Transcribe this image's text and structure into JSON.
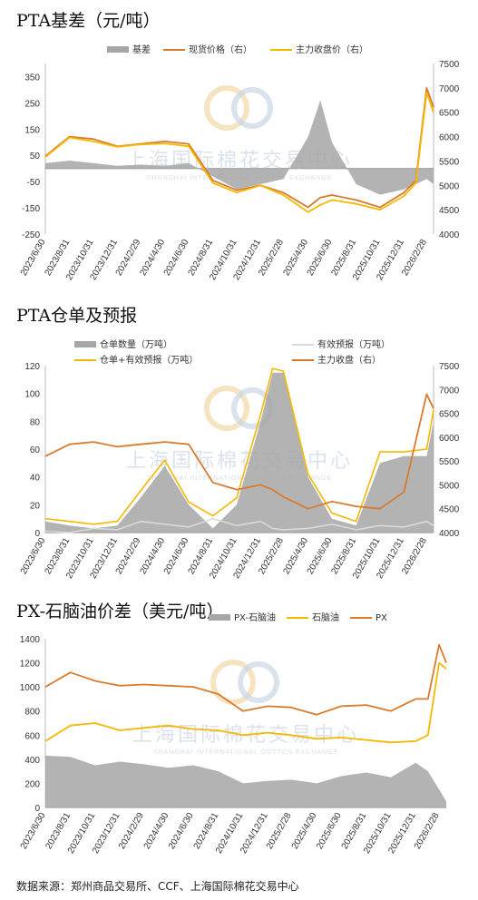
{
  "watermark": {
    "line1": "上海国际棉花交易中心",
    "line2": "SHANGHAI INTERNATIONAL COTTON EXCHANGE"
  },
  "source": "数据来源：郑州商品交易所、CCF、上海国际棉花交易中心",
  "x_ticks": [
    "2023/6/30",
    "2023/8/31",
    "2023/10/31",
    "2023/12/31",
    "2024/2/29",
    "2024/4/30",
    "2024/6/30",
    "2024/8/31",
    "2024/10/31",
    "2024/12/31",
    "2025/2/28",
    "2025/4/30",
    "2025/6/30",
    "2025/8/31",
    "2025/10/31",
    "2025/12/31",
    "2026/2/28"
  ],
  "chart_data": [
    {
      "type": "area",
      "title": "PTA基差（元/吨）",
      "legend": [
        "基差",
        "现货价格（右）",
        "主力收盘价（右）"
      ],
      "colors": {
        "basis": "#a6a6a6",
        "spot": "#d97b2c",
        "futures": "#f5b800"
      },
      "y_left": {
        "ticks": [
          -250,
          -150,
          -50,
          50,
          150,
          250,
          350
        ],
        "range": [
          -250,
          400
        ]
      },
      "y_right": {
        "ticks": [
          4000,
          4500,
          5000,
          5500,
          6000,
          6500,
          7000,
          7500
        ],
        "range": [
          4000,
          7500
        ]
      },
      "x_dates": [
        "2023/6/30",
        "2023/8/31",
        "2023/10/31",
        "2023/12/31",
        "2024/2/29",
        "2024/4/30",
        "2024/6/30",
        "2024/8/31",
        "2024/10/31",
        "2024/12/31",
        "2025/2/28",
        "2025/4/30",
        "2025/5/31",
        "2025/6/30",
        "2025/8/31",
        "2025/10/31",
        "2025/12/31",
        "2026/1/31",
        "2026/2/28",
        "2026/3/15"
      ],
      "series": [
        {
          "name": "基差",
          "values": [
            20,
            30,
            20,
            10,
            15,
            10,
            20,
            -30,
            -80,
            -60,
            -40,
            120,
            260,
            100,
            -60,
            -100,
            -80,
            -60,
            -40,
            -60
          ]
        },
        {
          "name": "现货价格（右）",
          "values": [
            5600,
            6000,
            5950,
            5800,
            5850,
            5900,
            5850,
            5100,
            4900,
            5000,
            4850,
            4550,
            4750,
            4800,
            4700,
            4550,
            4850,
            5100,
            7000,
            6600
          ]
        },
        {
          "name": "主力收盘价（右）",
          "values": [
            5580,
            5980,
            5900,
            5790,
            5840,
            5860,
            5800,
            5050,
            4850,
            5000,
            4800,
            4450,
            4600,
            4700,
            4620,
            4500,
            4780,
            5050,
            6900,
            6500
          ]
        }
      ]
    },
    {
      "type": "area",
      "title": "PTA仓单及预报",
      "legend": [
        "仓单数量（万吨）",
        "有效预报（万吨）",
        "仓单+有效预报（万吨）",
        "主力收盘（右）"
      ],
      "colors": {
        "warrant": "#a6a6a6",
        "forecast": "#d9d9d9",
        "total": "#f5b800",
        "close": "#d97b2c"
      },
      "y_left": {
        "ticks": [
          0,
          20,
          40,
          60,
          80,
          100,
          120
        ],
        "range": [
          0,
          120
        ]
      },
      "y_right": {
        "ticks": [
          4000,
          4500,
          5000,
          5500,
          6000,
          6500,
          7000,
          7500
        ],
        "range": [
          4000,
          7500
        ]
      },
      "x_dates": [
        "2023/6/30",
        "2023/8/31",
        "2023/10/31",
        "2023/12/31",
        "2024/2/29",
        "2024/4/30",
        "2024/6/30",
        "2024/8/31",
        "2024/10/31",
        "2024/12/31",
        "2025/1/31",
        "2025/2/28",
        "2025/4/30",
        "2025/6/30",
        "2025/8/31",
        "2025/10/31",
        "2025/12/31",
        "2026/2/28",
        "2026/3/15"
      ],
      "series": [
        {
          "name": "仓单数量（万吨）",
          "values": [
            8,
            5,
            3,
            5,
            25,
            48,
            20,
            3,
            20,
            80,
            115,
            115,
            40,
            10,
            5,
            50,
            55,
            55,
            80
          ]
        },
        {
          "name": "有效预报（万吨）",
          "values": [
            1,
            0,
            3,
            2,
            8,
            6,
            4,
            10,
            5,
            8,
            3,
            2,
            3,
            6,
            2,
            5,
            4,
            8,
            5
          ]
        },
        {
          "name": "仓单+有效预报（万吨）",
          "values": [
            10,
            8,
            6,
            8,
            30,
            52,
            22,
            12,
            25,
            85,
            118,
            116,
            42,
            14,
            8,
            58,
            58,
            60,
            88
          ]
        },
        {
          "name": "主力收盘（右）",
          "values": [
            5600,
            5850,
            5900,
            5800,
            5850,
            5900,
            5850,
            5050,
            4900,
            5000,
            4900,
            4750,
            4500,
            4650,
            4550,
            4500,
            4850,
            6900,
            6600
          ]
        }
      ]
    },
    {
      "type": "area",
      "title": "PX-石脑油价差（美元/吨）",
      "legend": [
        "PX-石脑油",
        "石脑油",
        "PX"
      ],
      "colors": {
        "spread": "#a6a6a6",
        "naphtha": "#f5b800",
        "px": "#d97b2c"
      },
      "y_left": {
        "ticks": [
          0,
          200,
          400,
          600,
          800,
          1000,
          1200,
          1400
        ],
        "range": [
          0,
          1400
        ]
      },
      "x_dates": [
        "2023/6/30",
        "2023/8/31",
        "2023/10/31",
        "2023/12/31",
        "2024/2/29",
        "2024/4/30",
        "2024/6/30",
        "2024/8/31",
        "2024/10/31",
        "2024/12/31",
        "2025/2/28",
        "2025/4/30",
        "2025/6/30",
        "2025/8/31",
        "2025/10/31",
        "2025/12/31",
        "2026/1/31",
        "2026/2/28",
        "2026/3/15"
      ],
      "series": [
        {
          "name": "PX-石脑油",
          "values": [
            430,
            420,
            350,
            380,
            360,
            330,
            350,
            300,
            200,
            220,
            230,
            200,
            260,
            290,
            250,
            370,
            300,
            150,
            50
          ]
        },
        {
          "name": "石脑油",
          "values": [
            550,
            680,
            700,
            640,
            660,
            680,
            650,
            640,
            600,
            620,
            600,
            570,
            580,
            560,
            540,
            550,
            600,
            1200,
            1150
          ]
        },
        {
          "name": "PX",
          "values": [
            1000,
            1120,
            1050,
            1010,
            1020,
            1010,
            1000,
            940,
            800,
            840,
            830,
            770,
            840,
            850,
            800,
            900,
            900,
            1350,
            1200
          ]
        }
      ]
    }
  ]
}
